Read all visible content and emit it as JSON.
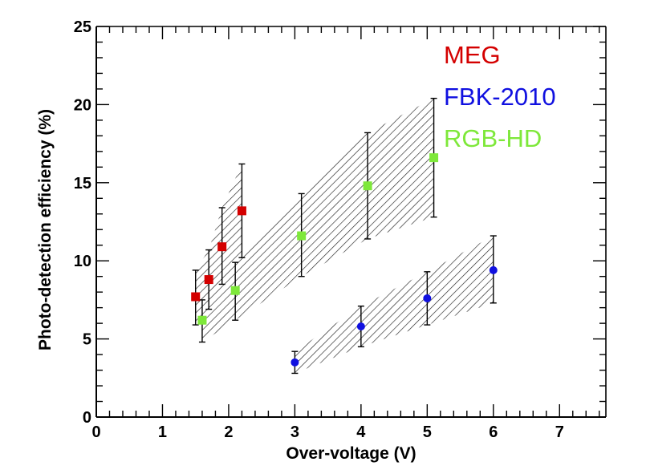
{
  "chart_data": {
    "type": "scatter",
    "title": "",
    "xlabel": "Over-voltage (V)",
    "ylabel": "Photo-detection efficiency (%)",
    "xlim": [
      0,
      7.7
    ],
    "ylim": [
      0,
      25
    ],
    "x_ticks": [
      0,
      1,
      2,
      3,
      4,
      5,
      6,
      7
    ],
    "y_ticks": [
      0,
      5,
      10,
      15,
      20,
      25
    ],
    "x_tick_labels": [
      "0",
      "1",
      "2",
      "3",
      "4",
      "5",
      "6",
      "7"
    ],
    "y_tick_labels": [
      "0",
      "5",
      "10",
      "15",
      "20",
      "25"
    ],
    "grid": false,
    "legend_position": "top-right",
    "series": [
      {
        "name": "MEG",
        "color": "#d40000",
        "marker": "square",
        "x": [
          1.5,
          1.7,
          1.9,
          2.2
        ],
        "y": [
          7.7,
          8.8,
          10.9,
          13.2
        ],
        "y_err_low": [
          5.9,
          6.9,
          8.5,
          10.2
        ],
        "y_err_high": [
          9.4,
          10.7,
          13.4,
          16.2
        ],
        "band_lower": [
          5.9,
          6.9,
          8.5,
          10.2
        ],
        "band_upper": [
          9.4,
          10.7,
          13.4,
          16.2
        ]
      },
      {
        "name": "FBK-2010",
        "color": "#1010e0",
        "marker": "circle",
        "x": [
          3,
          4,
          5,
          6
        ],
        "y": [
          3.5,
          5.8,
          7.6,
          9.4
        ],
        "y_err_low": [
          2.8,
          4.5,
          5.9,
          7.3
        ],
        "y_err_high": [
          4.2,
          7.1,
          9.3,
          11.6
        ],
        "band_lower": [
          2.8,
          4.5,
          5.9,
          7.3
        ],
        "band_upper": [
          4.2,
          7.1,
          9.3,
          11.6
        ]
      },
      {
        "name": "RGB-HD",
        "color": "#7ee83a",
        "marker": "square",
        "x": [
          1.6,
          2.1,
          3.1,
          4.1,
          5.1
        ],
        "y": [
          6.2,
          8.1,
          11.6,
          14.8,
          16.6
        ],
        "y_err_low": [
          4.8,
          6.2,
          9.0,
          11.4,
          12.8
        ],
        "y_err_high": [
          7.5,
          9.9,
          14.3,
          18.2,
          20.4
        ],
        "band_lower": [
          4.8,
          6.2,
          9.0,
          11.4,
          12.8
        ],
        "band_upper": [
          7.5,
          9.9,
          14.3,
          18.2,
          20.4
        ]
      }
    ]
  }
}
